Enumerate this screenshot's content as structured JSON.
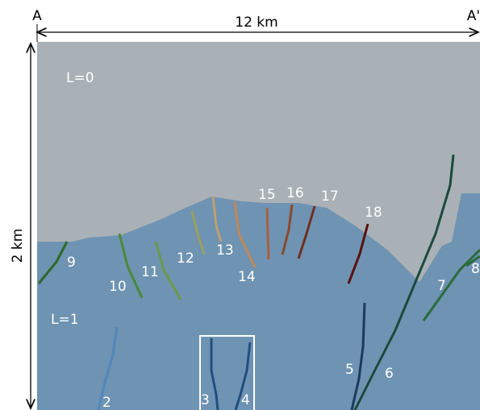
{
  "labels": {
    "left_end": "A",
    "right_end": "A'",
    "width": "12 km",
    "depth": "2 km",
    "layer_top": "L=0",
    "layer_bottom": "L=1"
  },
  "faults": [
    {
      "label": "2"
    },
    {
      "label": "3"
    },
    {
      "label": "4"
    },
    {
      "label": "5"
    },
    {
      "label": "6"
    },
    {
      "label": "7"
    },
    {
      "label": "8"
    },
    {
      "label": "9"
    },
    {
      "label": "10"
    },
    {
      "label": "11"
    },
    {
      "label": "12"
    },
    {
      "label": "13"
    },
    {
      "label": "14"
    },
    {
      "label": "15"
    },
    {
      "label": "16"
    },
    {
      "label": "17"
    },
    {
      "label": "18"
    }
  ]
}
